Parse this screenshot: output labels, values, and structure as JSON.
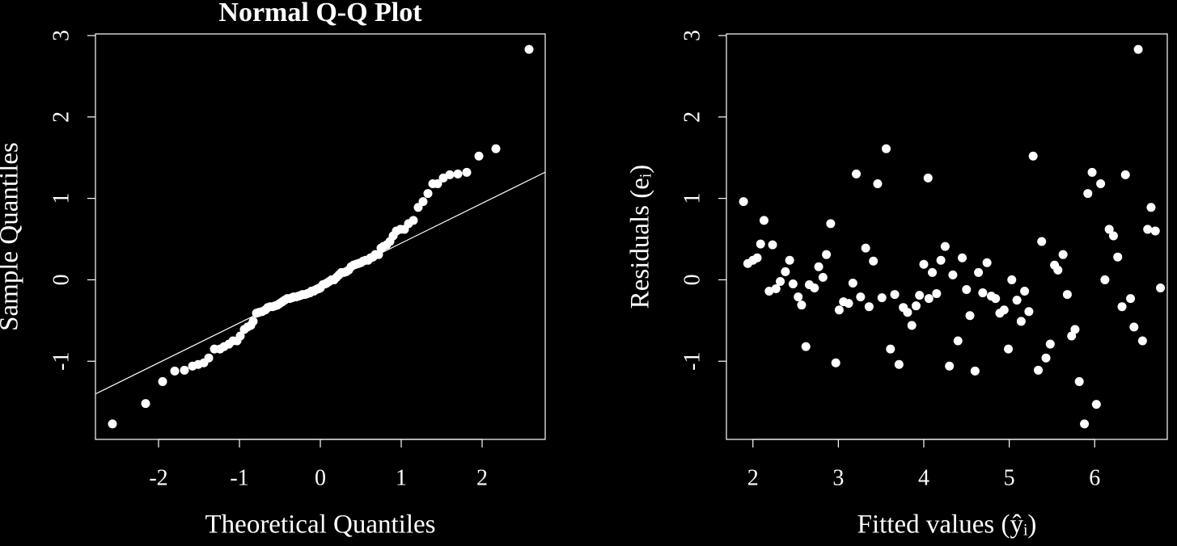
{
  "chart_data": [
    {
      "type": "scatter",
      "title": "Normal Q-Q Plot",
      "xlabel": "Theoretical Quantiles",
      "ylabel": "Sample Quantiles",
      "color": "#ffffff",
      "xlim": [
        -2.78,
        2.78
      ],
      "ylim": [
        -1.96,
        3.02
      ],
      "xticks": [
        -2,
        -1,
        0,
        1,
        2
      ],
      "yticks": [
        -1,
        0,
        1,
        2,
        3
      ],
      "reference_line": {
        "intercept": -0.04,
        "slope": 0.49
      },
      "x": [
        -2.57,
        -2.16,
        -1.95,
        -1.8,
        -1.68,
        -1.58,
        -1.51,
        -1.44,
        -1.38,
        -1.31,
        -1.24,
        -1.19,
        -1.13,
        -1.08,
        -1.03,
        -0.99,
        -0.94,
        -0.9,
        -0.86,
        -0.83,
        -0.79,
        -0.76,
        -0.72,
        -0.68,
        -0.65,
        -0.62,
        -0.59,
        -0.56,
        -0.53,
        -0.5,
        -0.47,
        -0.44,
        -0.41,
        -0.38,
        -0.35,
        -0.33,
        -0.3,
        -0.27,
        -0.24,
        -0.22,
        -0.19,
        -0.16,
        -0.13,
        -0.11,
        -0.08,
        -0.05,
        -0.02,
        0.0,
        0.03,
        0.06,
        0.08,
        0.11,
        0.14,
        0.17,
        0.2,
        0.23,
        0.26,
        0.29,
        0.32,
        0.35,
        0.38,
        0.41,
        0.44,
        0.47,
        0.5,
        0.53,
        0.56,
        0.59,
        0.62,
        0.65,
        0.68,
        0.72,
        0.75,
        0.78,
        0.82,
        0.86,
        0.9,
        0.94,
        0.99,
        1.04,
        1.09,
        1.15,
        1.21,
        1.27,
        1.33,
        1.39,
        1.45,
        1.52,
        1.6,
        1.7,
        1.81,
        1.96,
        2.17,
        2.58
      ],
      "y": [
        -1.77,
        -1.52,
        -1.25,
        -1.12,
        -1.11,
        -1.06,
        -1.04,
        -1.02,
        -0.96,
        -0.85,
        -0.85,
        -0.82,
        -0.79,
        -0.75,
        -0.75,
        -0.69,
        -0.61,
        -0.58,
        -0.56,
        -0.51,
        -0.41,
        -0.4,
        -0.39,
        -0.37,
        -0.34,
        -0.33,
        -0.33,
        -0.32,
        -0.31,
        -0.29,
        -0.27,
        -0.25,
        -0.23,
        -0.23,
        -0.22,
        -0.21,
        -0.21,
        -0.2,
        -0.19,
        -0.18,
        -0.18,
        -0.17,
        -0.16,
        -0.14,
        -0.14,
        -0.12,
        -0.11,
        -0.1,
        -0.06,
        -0.05,
        -0.04,
        -0.02,
        0.0,
        0.0,
        0.03,
        0.06,
        0.09,
        0.09,
        0.1,
        0.12,
        0.16,
        0.18,
        0.19,
        0.2,
        0.21,
        0.23,
        0.24,
        0.24,
        0.27,
        0.28,
        0.31,
        0.31,
        0.39,
        0.41,
        0.43,
        0.47,
        0.54,
        0.6,
        0.62,
        0.62,
        0.69,
        0.73,
        0.89,
        0.96,
        1.06,
        1.18,
        1.18,
        1.25,
        1.29,
        1.3,
        1.32,
        1.52,
        1.61,
        2.83
      ]
    },
    {
      "type": "scatter",
      "xlabel": "Fitted values (ŷᵢ)",
      "ylabel": "Residuals (eᵢ)",
      "color": "#ffffff",
      "xlim": [
        1.69,
        6.85
      ],
      "ylim": [
        -1.96,
        3.02
      ],
      "xticks": [
        2,
        3,
        4,
        5,
        6
      ],
      "yticks": [
        -1,
        0,
        1,
        2,
        3
      ],
      "x": [
        1.89,
        1.94,
        2.0,
        2.05,
        2.09,
        2.13,
        2.19,
        2.23,
        2.27,
        2.32,
        2.38,
        2.43,
        2.47,
        2.53,
        2.57,
        2.62,
        2.66,
        2.72,
        2.77,
        2.82,
        2.86,
        2.91,
        2.97,
        3.01,
        3.06,
        3.12,
        3.17,
        3.21,
        3.26,
        3.32,
        3.36,
        3.41,
        3.46,
        3.51,
        3.56,
        3.61,
        3.66,
        3.71,
        3.76,
        3.81,
        3.86,
        3.91,
        3.95,
        4.0,
        4.05,
        4.06,
        4.1,
        4.15,
        4.2,
        4.25,
        4.3,
        4.34,
        4.4,
        4.45,
        4.5,
        4.54,
        4.6,
        4.64,
        4.69,
        4.74,
        4.79,
        4.84,
        4.89,
        4.94,
        4.99,
        5.03,
        5.09,
        5.14,
        5.18,
        5.23,
        5.28,
        5.34,
        5.38,
        5.43,
        5.48,
        5.53,
        5.57,
        5.63,
        5.68,
        5.73,
        5.77,
        5.82,
        5.88,
        5.92,
        5.97,
        6.02,
        6.07,
        6.12,
        6.17,
        6.22,
        6.27,
        6.32,
        6.36,
        6.42,
        6.46,
        6.51,
        6.56,
        6.62,
        6.66,
        6.71,
        6.77
      ],
      "y": [
        0.96,
        0.2,
        0.24,
        0.27,
        0.44,
        0.73,
        -0.14,
        0.43,
        -0.11,
        -0.02,
        0.1,
        0.24,
        -0.05,
        -0.21,
        -0.31,
        -0.82,
        -0.06,
        -0.1,
        0.16,
        0.03,
        0.31,
        0.69,
        -1.02,
        -0.37,
        -0.27,
        -0.29,
        -0.04,
        1.3,
        -0.21,
        0.39,
        -0.33,
        0.23,
        1.18,
        -0.22,
        1.61,
        -0.85,
        -0.18,
        -1.04,
        -0.34,
        -0.4,
        -0.56,
        -0.32,
        -0.19,
        0.19,
        1.25,
        -0.23,
        0.09,
        -0.17,
        0.24,
        0.41,
        -1.06,
        0.06,
        -0.75,
        0.27,
        -0.12,
        -0.44,
        -1.12,
        0.09,
        -0.16,
        0.21,
        -0.2,
        -0.23,
        -0.41,
        -0.37,
        -0.85,
        0.0,
        -0.25,
        -0.51,
        -0.14,
        -0.39,
        1.52,
        -1.11,
        0.47,
        -0.96,
        -0.79,
        0.18,
        0.12,
        0.31,
        -0.18,
        -0.69,
        -0.61,
        -1.25,
        -1.77,
        1.06,
        1.32,
        -1.53,
        1.18,
        0.0,
        0.62,
        0.54,
        0.28,
        -0.33,
        1.29,
        -0.23,
        -0.58,
        2.83,
        -0.75,
        0.62,
        0.89,
        0.6,
        -0.1
      ]
    }
  ]
}
